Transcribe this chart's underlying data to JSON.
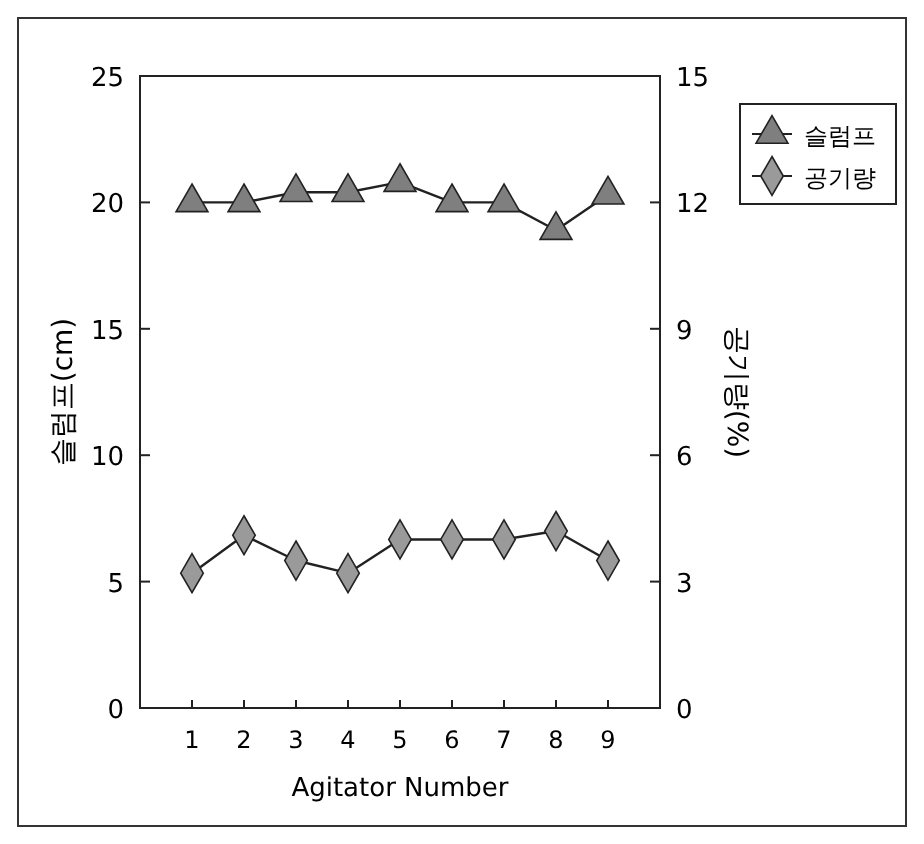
{
  "chart_data": {
    "type": "line",
    "xlabel": "Agitator Number",
    "ylabel": "슬럼프(cm)",
    "y2label": "공기량(%)",
    "x": [
      1,
      2,
      3,
      4,
      5,
      6,
      7,
      8,
      9
    ],
    "xlim": [
      0,
      10
    ],
    "xticks": [
      1,
      2,
      3,
      4,
      5,
      6,
      7,
      8,
      9
    ],
    "ylim": [
      0,
      25
    ],
    "yticks": [
      0,
      5,
      10,
      15,
      20,
      25
    ],
    "y2lim": [
      0,
      15
    ],
    "y2ticks": [
      0,
      3,
      6,
      9,
      12,
      15
    ],
    "series": [
      {
        "name": "슬럼프",
        "color": "#7f7f7f",
        "marker": "triangle",
        "values": [
          20,
          20,
          20.4,
          20.4,
          20.8,
          20,
          20,
          18.9,
          20.3
        ]
      },
      {
        "name": "공기량",
        "color": "#9a9a9a",
        "marker": "diamond",
        "axis": "y2",
        "values": [
          3.2,
          4.1,
          3.5,
          3.2,
          4.0,
          4.0,
          4.0,
          4.2,
          3.5
        ]
      }
    ],
    "legend": "top right",
    "grid": false,
    "line_style": "solid"
  }
}
